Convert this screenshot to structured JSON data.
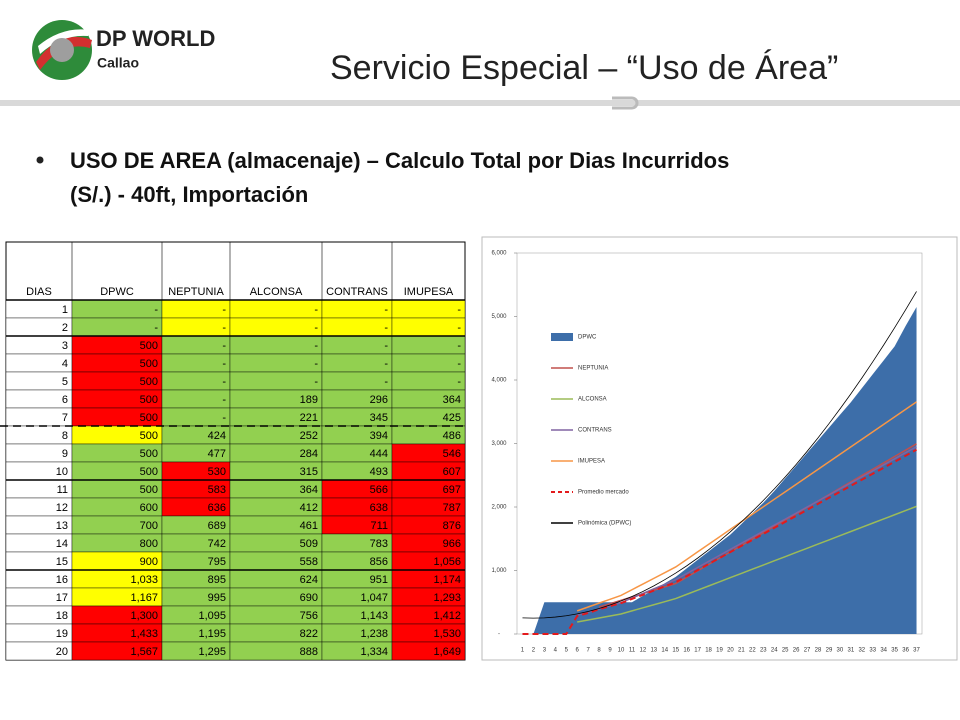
{
  "header": {
    "logo_title": "DP WORLD",
    "logo_subtitle": "Callao",
    "title": "Servicio Especial – “Uso de Área”"
  },
  "bullet": {
    "line1": "USO DE AREA (almacenaje) – Calculo Total por Dias Incurridos",
    "line2": "(S/.) - 40ft, Importación"
  },
  "table": {
    "columns": [
      "DIAS",
      "DPWC",
      "NEPTUNIA",
      "ALCONSA",
      "CONTRANS",
      "IMUPESA"
    ],
    "palette": {
      "g": "#92d050",
      "y": "#ffff00",
      "r": "#ff0000"
    },
    "rows": [
      [
        "1",
        "-",
        "-",
        "-",
        "-",
        "-"
      ],
      [
        "2",
        "-",
        "-",
        "-",
        "-",
        "-"
      ],
      [
        "3",
        "500",
        "-",
        "-",
        "-",
        "-"
      ],
      [
        "4",
        "500",
        "-",
        "-",
        "-",
        "-"
      ],
      [
        "5",
        "500",
        "-",
        "-",
        "-",
        "-"
      ],
      [
        "6",
        "500",
        "-",
        "189",
        "296",
        "364"
      ],
      [
        "7",
        "500",
        "-",
        "221",
        "345",
        "425"
      ],
      [
        "8",
        "500",
        "424",
        "252",
        "394",
        "486"
      ],
      [
        "9",
        "500",
        "477",
        "284",
        "444",
        "546"
      ],
      [
        "10",
        "500",
        "530",
        "315",
        "493",
        "607"
      ],
      [
        "11",
        "500",
        "583",
        "364",
        "566",
        "697"
      ],
      [
        "12",
        "600",
        "636",
        "412",
        "638",
        "787"
      ],
      [
        "13",
        "700",
        "689",
        "461",
        "711",
        "876"
      ],
      [
        "14",
        "800",
        "742",
        "509",
        "783",
        "966"
      ],
      [
        "15",
        "900",
        "795",
        "558",
        "856",
        "1,056"
      ],
      [
        "16",
        "1,033",
        "895",
        "624",
        "951",
        "1,174"
      ],
      [
        "17",
        "1,167",
        "995",
        "690",
        "1,047",
        "1,293"
      ],
      [
        "18",
        "1,300",
        "1,095",
        "756",
        "1,143",
        "1,412"
      ],
      [
        "19",
        "1,433",
        "1,195",
        "822",
        "1,238",
        "1,530"
      ],
      [
        "20",
        "1,567",
        "1,295",
        "888",
        "1,334",
        "1,649"
      ]
    ],
    "fills": [
      "gyyyy",
      "gyyyy",
      "rgggg",
      "rgggg",
      "rgggg",
      "rgggg",
      "rgggg",
      "ygggg",
      "ggggr",
      "grggr",
      "grgrr",
      "grgrr",
      "gggrr",
      "ggggr",
      "ygggr",
      "ygggr",
      "ygggr",
      "rgggr",
      "rgggr",
      "rgggr"
    ]
  },
  "chart_data": {
    "type": "line",
    "categories": [
      1,
      2,
      3,
      4,
      5,
      6,
      7,
      8,
      9,
      10,
      11,
      12,
      13,
      14,
      15,
      16,
      17,
      18,
      19,
      20,
      21,
      22,
      23,
      24,
      25,
      26,
      27,
      28,
      29,
      30,
      31,
      32,
      33,
      34,
      35,
      36,
      37
    ],
    "ylim": [
      0,
      6000
    ],
    "yticks": [
      {
        "value": 0,
        "label": "-"
      },
      {
        "value": 1000,
        "label": "1,000"
      },
      {
        "value": 2000,
        "label": "2,000"
      },
      {
        "value": 3000,
        "label": "3,000"
      },
      {
        "value": 4000,
        "label": "4,000"
      },
      {
        "value": 5000,
        "label": "5,000"
      },
      {
        "value": 6000,
        "label": "6,000"
      }
    ],
    "series": [
      {
        "name": "DPWC",
        "color": "#3d6ea9",
        "style": "area",
        "values": [
          0,
          0,
          500,
          500,
          500,
          500,
          500,
          500,
          500,
          500,
          500,
          600,
          700,
          800,
          900,
          1033,
          1167,
          1300,
          1433,
          1567,
          1733,
          1900,
          2067,
          2250,
          2450,
          2650,
          2850,
          3050,
          3250,
          3450,
          3650,
          3870,
          4090,
          4310,
          4530,
          4850,
          5150
        ]
      },
      {
        "name": "NEPTUNIA",
        "color": "#c0504d",
        "style": "line",
        "values": [
          null,
          null,
          null,
          null,
          null,
          null,
          null,
          424,
          477,
          530,
          583,
          636,
          689,
          742,
          795,
          895,
          995,
          1095,
          1195,
          1295,
          1395,
          1495,
          1595,
          1695,
          1795,
          1895,
          1995,
          2095,
          2195,
          2295,
          2395,
          2495,
          2595,
          2695,
          2795,
          2895,
          2995
        ]
      },
      {
        "name": "ALCONSA",
        "color": "#9bbb59",
        "style": "line",
        "values": [
          null,
          null,
          null,
          null,
          null,
          189,
          221,
          252,
          284,
          315,
          364,
          412,
          461,
          509,
          558,
          624,
          690,
          756,
          822,
          888,
          954,
          1020,
          1086,
          1152,
          1218,
          1284,
          1350,
          1416,
          1482,
          1548,
          1614,
          1680,
          1746,
          1812,
          1878,
          1944,
          2010
        ]
      },
      {
        "name": "CONTRANS",
        "color": "#8064a2",
        "style": "line",
        "values": [
          null,
          null,
          null,
          null,
          null,
          296,
          345,
          394,
          444,
          493,
          566,
          638,
          711,
          783,
          856,
          951,
          1047,
          1143,
          1238,
          1334,
          1429,
          1524,
          1619,
          1714,
          1809,
          1904,
          1999,
          2094,
          2189,
          2284,
          2379,
          2474,
          2569,
          2664,
          2759,
          2854,
          2949
        ]
      },
      {
        "name": "IMUPESA",
        "color": "#f79646",
        "style": "line",
        "values": [
          null,
          null,
          null,
          null,
          null,
          364,
          425,
          486,
          546,
          607,
          697,
          787,
          876,
          966,
          1056,
          1174,
          1293,
          1412,
          1530,
          1649,
          1767,
          1885,
          2003,
          2121,
          2239,
          2357,
          2475,
          2593,
          2711,
          2829,
          2947,
          3065,
          3183,
          3301,
          3419,
          3537,
          3655
        ]
      },
      {
        "name": "Promedio mercado",
        "color": "#e31a1c",
        "style": "dashed",
        "values": [
          0,
          0,
          0,
          0,
          0,
          283,
          330,
          389,
          438,
          486,
          553,
          618,
          684,
          750,
          816,
          911,
          1006,
          1102,
          1196,
          1292,
          1387,
          1481,
          1576,
          1671,
          1766,
          1860,
          1955,
          2050,
          2145,
          2239,
          2334,
          2429,
          2524,
          2618,
          2713,
          2808,
          2903
        ]
      },
      {
        "name": "Polinómica (DPWC)",
        "color": "#000000",
        "style": "thin",
        "values": [
          254,
          250,
          254,
          267,
          288,
          317,
          355,
          401,
          456,
          519,
          590,
          670,
          758,
          855,
          960,
          1073,
          1195,
          1325,
          1464,
          1611,
          1766,
          1930,
          2102,
          2283,
          2472,
          2669,
          2875,
          3089,
          3312,
          3543,
          3782,
          4030,
          4286,
          4551,
          4824,
          5105,
          5395
        ]
      }
    ]
  }
}
